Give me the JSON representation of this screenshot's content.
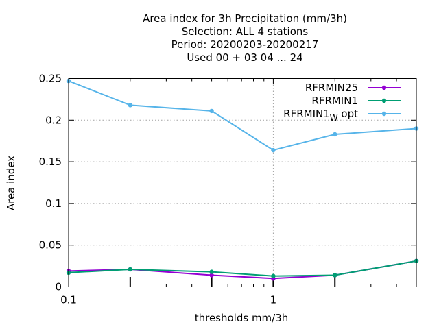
{
  "chart_data": {
    "type": "line",
    "title_lines": [
      "Area index  for 3h Precipitation (mm/3h)",
      "Selection: ALL      4 stations",
      "Period: 20200203-20200217",
      "Used  00 + 03 04 ... 24"
    ],
    "xlabel": "thresholds mm/3h",
    "ylabel": "Area index",
    "x_scale": "log",
    "xlim": [
      0.1,
      5
    ],
    "ylim": [
      0,
      0.25
    ],
    "x_ticks": [
      {
        "value": 0.1,
        "label": "0.1"
      },
      {
        "value": 1,
        "label": "1"
      }
    ],
    "x_minor_ticks": [
      0.2,
      0.3,
      0.4,
      0.5,
      0.6,
      0.7,
      0.8,
      0.9,
      2,
      3,
      4,
      5
    ],
    "y_ticks": [
      {
        "value": 0,
        "label": "0"
      },
      {
        "value": 0.05,
        "label": "0.05"
      },
      {
        "value": 0.1,
        "label": "0.1"
      },
      {
        "value": 0.15,
        "label": "0.15"
      },
      {
        "value": 0.2,
        "label": "0.2"
      },
      {
        "value": 0.25,
        "label": "0.25"
      }
    ],
    "grid": true,
    "legend_position": "top-right",
    "x": [
      0.1,
      0.2,
      0.5,
      1,
      2,
      5
    ],
    "bar_x": [
      0.2,
      0.5,
      1,
      2
    ],
    "series": [
      {
        "name": "RFRMIN25",
        "name_sub": "",
        "name_suffix": "",
        "color": "#9400d3",
        "values": [
          0.019,
          0.021,
          0.014,
          0.01,
          0.014,
          0.031
        ]
      },
      {
        "name": "RFRMIN1",
        "name_sub": "",
        "name_suffix": "",
        "color": "#009e73",
        "values": [
          0.017,
          0.021,
          0.018,
          0.013,
          0.014,
          0.031
        ]
      },
      {
        "name": "RFRMIN1",
        "name_sub": "W",
        "name_suffix": "opt",
        "color": "#56b4e9",
        "values": [
          0.247,
          0.218,
          0.211,
          0.164,
          0.183,
          0.19
        ]
      }
    ]
  }
}
